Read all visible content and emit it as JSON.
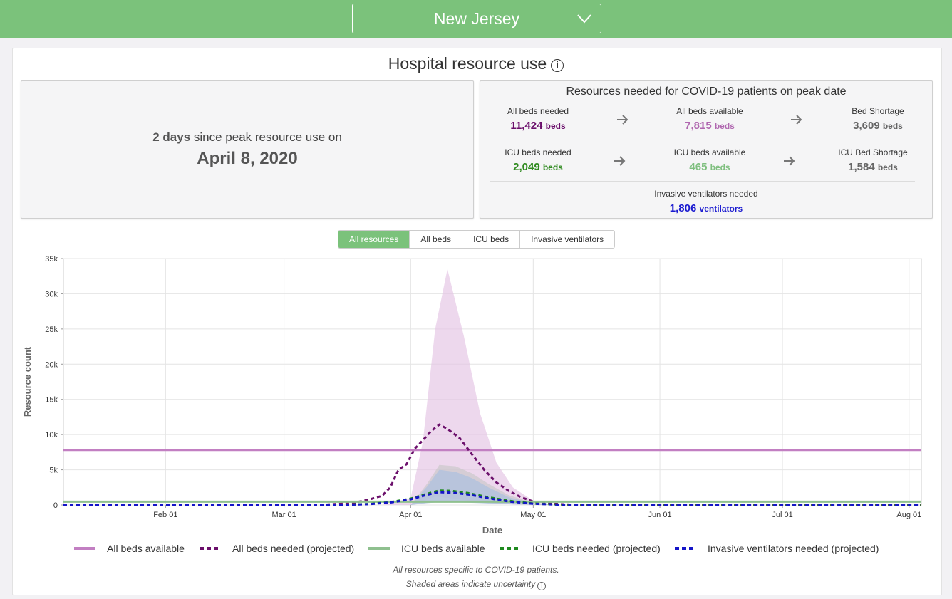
{
  "header": {
    "state": "New Jersey"
  },
  "title": "Hospital resource use",
  "peak": {
    "days_number": "2",
    "days_unit": "days",
    "days_suffix": "since peak resource use on",
    "date": "April 8, 2020"
  },
  "resources": {
    "title": "Resources needed for COVID-19 patients on peak date",
    "all_beds_needed": {
      "label": "All beds needed",
      "value": "11,424",
      "unit": "beds"
    },
    "all_beds_available": {
      "label": "All beds available",
      "value": "7,815",
      "unit": "beds"
    },
    "bed_shortage": {
      "label": "Bed Shortage",
      "value": "3,609",
      "unit": "beds"
    },
    "icu_beds_needed": {
      "label": "ICU beds needed",
      "value": "2,049",
      "unit": "beds"
    },
    "icu_beds_available": {
      "label": "ICU beds available",
      "value": "465",
      "unit": "beds"
    },
    "icu_bed_shortage": {
      "label": "ICU Bed Shortage",
      "value": "1,584",
      "unit": "beds"
    },
    "ventilators_needed": {
      "label": "Invasive ventilators needed",
      "value": "1,806",
      "unit": "ventilators"
    }
  },
  "tabs": [
    "All resources",
    "All beds",
    "ICU beds",
    "Invasive ventilators"
  ],
  "active_tab": 0,
  "colors": {
    "header_green": "#7bc27b",
    "all_beds_available": "#c27fc2",
    "all_beds_needed": "#6b0f6b",
    "icu_beds_available": "#8fc08f",
    "icu_beds_needed": "#1f8a1f",
    "ventilators": "#1414c8",
    "all_beds_value": "#6b0f6b",
    "all_beds_avail_value": "#b068b0",
    "icu_needed_value": "#2f8a1f",
    "icu_avail_value": "#7fbf7f",
    "vent_value": "#1a1ad0"
  },
  "chart_data": {
    "type": "line",
    "xlabel": "Date",
    "ylabel": "Resource count",
    "x_range": [
      "2020-01-07",
      "2020-08-04"
    ],
    "ylim": [
      0,
      35000
    ],
    "y_ticks": [
      0,
      5000,
      10000,
      15000,
      20000,
      25000,
      30000,
      35000
    ],
    "y_tick_labels": [
      "0",
      "5k",
      "10k",
      "15k",
      "20k",
      "25k",
      "30k",
      "35k"
    ],
    "x_ticks": [
      "2020-02-01",
      "2020-03-01",
      "2020-04-01",
      "2020-05-01",
      "2020-06-01",
      "2020-07-01",
      "2020-08-01"
    ],
    "x_tick_labels": [
      "Feb 01",
      "Mar 01",
      "Apr 01",
      "May 01",
      "Jun 01",
      "Jul 01",
      "Aug 01"
    ],
    "grid": true,
    "legend_position": "bottom",
    "series": [
      {
        "name": "All beds available",
        "style": "solid",
        "color": "#c27fc2",
        "x": [
          "2020-01-07",
          "2020-08-04"
        ],
        "y": [
          7815,
          7815
        ]
      },
      {
        "name": "All beds needed (projected)",
        "style": "dashed",
        "color": "#6b0f6b",
        "x": [
          "2020-01-07",
          "2020-03-10",
          "2020-03-18",
          "2020-03-22",
          "2020-03-25",
          "2020-03-27",
          "2020-03-29",
          "2020-03-31",
          "2020-04-02",
          "2020-04-04",
          "2020-04-06",
          "2020-04-08",
          "2020-04-10",
          "2020-04-13",
          "2020-04-16",
          "2020-04-19",
          "2020-04-22",
          "2020-04-25",
          "2020-04-28",
          "2020-05-01",
          "2020-05-05",
          "2020-05-10",
          "2020-06-01",
          "2020-08-04"
        ],
        "y": [
          0,
          0,
          300,
          800,
          1300,
          2500,
          5000,
          5800,
          8000,
          9200,
          10500,
          11424,
          10800,
          9500,
          7200,
          5000,
          3200,
          2000,
          1100,
          500,
          200,
          50,
          0,
          0
        ]
      },
      {
        "name": "ICU beds available",
        "style": "solid",
        "color": "#8fc08f",
        "x": [
          "2020-01-07",
          "2020-08-04"
        ],
        "y": [
          465,
          465
        ]
      },
      {
        "name": "ICU beds needed (projected)",
        "style": "dashed",
        "color": "#1f8a1f",
        "x": [
          "2020-01-07",
          "2020-03-15",
          "2020-03-22",
          "2020-03-27",
          "2020-04-01",
          "2020-04-05",
          "2020-04-08",
          "2020-04-11",
          "2020-04-15",
          "2020-04-20",
          "2020-04-25",
          "2020-05-01",
          "2020-05-08",
          "2020-06-01",
          "2020-08-04"
        ],
        "y": [
          0,
          0,
          150,
          400,
          900,
          1600,
          2049,
          2000,
          1700,
          1100,
          600,
          200,
          40,
          0,
          0
        ]
      },
      {
        "name": "Invasive ventilators needed (projected)",
        "style": "dashed",
        "color": "#1414c8",
        "x": [
          "2020-01-07",
          "2020-03-15",
          "2020-03-22",
          "2020-03-27",
          "2020-04-01",
          "2020-04-05",
          "2020-04-08",
          "2020-04-11",
          "2020-04-15",
          "2020-04-20",
          "2020-04-25",
          "2020-05-01",
          "2020-05-08",
          "2020-06-01",
          "2020-08-04"
        ],
        "y": [
          0,
          0,
          120,
          350,
          800,
          1450,
          1806,
          1750,
          1500,
          950,
          500,
          170,
          30,
          0,
          0
        ]
      }
    ],
    "uncertainty_bands": [
      {
        "series": "All beds needed (projected)",
        "color": "#e3c3e3",
        "x": [
          "2020-03-25",
          "2020-04-01",
          "2020-04-04",
          "2020-04-07",
          "2020-04-10",
          "2020-04-14",
          "2020-04-18",
          "2020-04-22",
          "2020-04-26",
          "2020-05-01",
          "2020-05-06"
        ],
        "upper": [
          0,
          1000,
          9000,
          25000,
          33500,
          24000,
          13000,
          6000,
          2500,
          600,
          0
        ],
        "lower": [
          0,
          0,
          500,
          1200,
          1000,
          700,
          400,
          200,
          80,
          20,
          0
        ]
      },
      {
        "series": "ICU beds needed (projected)",
        "color": "#c8c8c8",
        "x": [
          "2020-04-01",
          "2020-04-05",
          "2020-04-08",
          "2020-04-12",
          "2020-04-16",
          "2020-04-20",
          "2020-04-25",
          "2020-05-01",
          "2020-05-06"
        ],
        "upper": [
          0,
          3000,
          5700,
          5500,
          4500,
          3000,
          1400,
          300,
          0
        ],
        "lower": [
          0,
          300,
          500,
          450,
          350,
          250,
          120,
          30,
          0
        ]
      },
      {
        "series": "Invasive ventilators needed (projected)",
        "color": "#a9bfe0",
        "x": [
          "2020-04-01",
          "2020-04-05",
          "2020-04-08",
          "2020-04-12",
          "2020-04-16",
          "2020-04-20",
          "2020-04-25",
          "2020-05-01",
          "2020-05-06"
        ],
        "upper": [
          0,
          2600,
          5000,
          4700,
          3800,
          2500,
          1100,
          250,
          0
        ],
        "lower": [
          0,
          250,
          400,
          380,
          300,
          200,
          100,
          25,
          0
        ]
      }
    ]
  },
  "footnote": {
    "line1": "All resources specific to COVID-19 patients.",
    "line2": "Shaded areas indicate uncertainty"
  }
}
